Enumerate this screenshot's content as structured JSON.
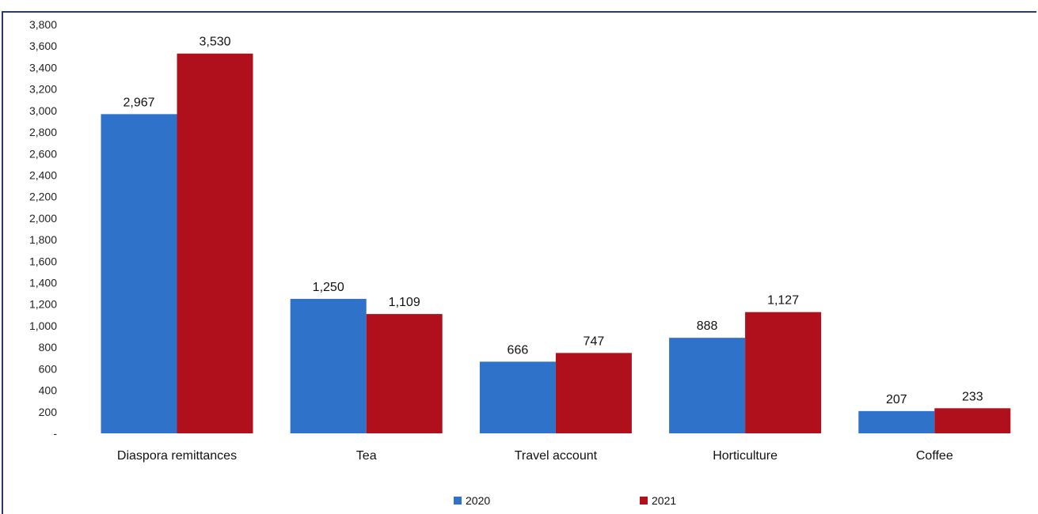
{
  "chart_data": {
    "type": "bar",
    "categories": [
      "Diaspora remittances",
      "Tea",
      "Travel account",
      "Horticulture",
      "Coffee"
    ],
    "series": [
      {
        "name": "2020",
        "color": "#2f72c9",
        "values": [
          2967,
          1250,
          666,
          888,
          207
        ],
        "labels": [
          "2,967",
          "1,250",
          "666",
          "888",
          "207"
        ]
      },
      {
        "name": "2021",
        "color": "#b0101b",
        "values": [
          3530,
          1109,
          747,
          1127,
          233
        ],
        "labels": [
          "3,530",
          "1,109",
          "747",
          "1,127",
          "233"
        ]
      }
    ],
    "ylim": [
      0,
      3800
    ],
    "yticks": [
      {
        "value": 0,
        "label": "-"
      },
      {
        "value": 200,
        "label": "200"
      },
      {
        "value": 400,
        "label": "400"
      },
      {
        "value": 600,
        "label": "600"
      },
      {
        "value": 800,
        "label": "800"
      },
      {
        "value": 1000,
        "label": "1,000"
      },
      {
        "value": 1200,
        "label": "1,200"
      },
      {
        "value": 1400,
        "label": "1,400"
      },
      {
        "value": 1600,
        "label": "1,600"
      },
      {
        "value": 1800,
        "label": "1,800"
      },
      {
        "value": 2000,
        "label": "2,000"
      },
      {
        "value": 2200,
        "label": "2,200"
      },
      {
        "value": 2400,
        "label": "2,400"
      },
      {
        "value": 2600,
        "label": "2,600"
      },
      {
        "value": 2800,
        "label": "2,800"
      },
      {
        "value": 3000,
        "label": "3,000"
      },
      {
        "value": 3200,
        "label": "3,200"
      },
      {
        "value": 3400,
        "label": "3,400"
      },
      {
        "value": 3600,
        "label": "3,600"
      },
      {
        "value": 3800,
        "label": "3,800"
      }
    ],
    "grid": false,
    "legend": "bottom"
  }
}
